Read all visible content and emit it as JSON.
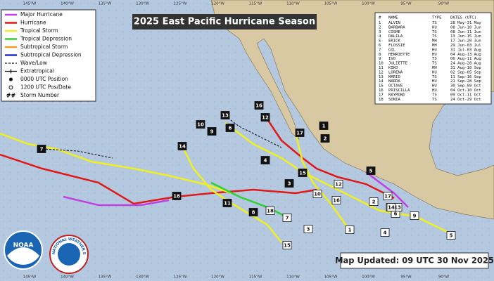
{
  "header": {
    "title": "2025 East Pacific Hurricane Season"
  },
  "legend": [
    {
      "label": "Major Hurricane",
      "color": "#c040e0"
    },
    {
      "label": "Hurricane",
      "color": "#e01818"
    },
    {
      "label": "Tropical Storm",
      "color": "#f0f020"
    },
    {
      "label": "Tropical Depression",
      "color": "#30d030"
    },
    {
      "label": "Subtropical Storm",
      "color": "#f0a020"
    },
    {
      "label": "Subtropical Depression",
      "color": "#2030d0"
    },
    {
      "label": "Wave/Low"
    },
    {
      "label": "Extratropical"
    },
    {
      "label": "0000 UTC Position"
    },
    {
      "label": "1200 UTC Pos/Date"
    },
    {
      "label": "Storm Number",
      "symbol": "##"
    }
  ],
  "storm_table": {
    "columns": [
      "#",
      "NAME",
      "TYPE",
      "DATES (UTC)"
    ],
    "rows": [
      [
        "1",
        "ALVIN",
        "TS",
        "28 May-31 May"
      ],
      [
        "2",
        "BARBARA",
        "HU",
        "08 Jun-10 Jun"
      ],
      [
        "3",
        "COSME",
        "TS",
        "08 Jun-11 Jun"
      ],
      [
        "4",
        "DALILA",
        "TS",
        "13 Jun-15 Jun"
      ],
      [
        "5",
        "ERICK",
        "MH",
        "17 Jun-20 Jun"
      ],
      [
        "6",
        "FLOSSIE",
        "MH",
        "29 Jun-03 Jul"
      ],
      [
        "7",
        "GIL",
        "HU",
        "31 Jul-03 Aug"
      ],
      [
        "8",
        "HENRIETTE",
        "HU",
        "04 Aug-13 Aug"
      ],
      [
        "9",
        "IVO",
        "TS",
        "06 Aug-11 Aug"
      ],
      [
        "10",
        "JULIETTE",
        "TS",
        "24 Aug-28 Aug"
      ],
      [
        "11",
        "KIKO",
        "MH",
        "31 Aug-10 Sep"
      ],
      [
        "12",
        "LORENA",
        "HU",
        "02 Sep-05 Sep"
      ],
      [
        "13",
        "MARIO",
        "TS",
        "11 Sep-16 Sep"
      ],
      [
        "14",
        "NARDA",
        "HU",
        "21 Sep-28 Sep"
      ],
      [
        "15",
        "OCTAVE",
        "HU",
        "30 Sep-09 Oct"
      ],
      [
        "16",
        "PRISCILLA",
        "HU",
        "04 Oct-10 Oct"
      ],
      [
        "17",
        "RAYMOND",
        "TS",
        "09 Oct-11 Oct"
      ],
      [
        "18",
        "SONIA",
        "TS",
        "24 Oct-29 Oct"
      ]
    ]
  },
  "longitude_labels": [
    "145°W",
    "140°W",
    "135°W",
    "130°W",
    "125°W",
    "120°W",
    "115°W",
    "110°W",
    "105°W",
    "100°W",
    "95°W",
    "90°W"
  ],
  "storm_start_labels": [
    "1",
    "2",
    "3",
    "4",
    "5",
    "6",
    "7",
    "8",
    "9",
    "10",
    "11",
    "12",
    "13",
    "14",
    "15",
    "16",
    "17",
    "18"
  ],
  "storm_end_labels": [
    "1",
    "2",
    "3",
    "4",
    "5",
    "6",
    "7",
    "8",
    "9",
    "10",
    "12",
    "13",
    "14",
    "15",
    "16",
    "17",
    "18"
  ],
  "footer": {
    "updated": "Map Updated: 09 UTC 30 Nov 2025"
  },
  "logos": {
    "noaa": "NOAA",
    "nws": "NATIONAL WEATHER SERVICE"
  }
}
